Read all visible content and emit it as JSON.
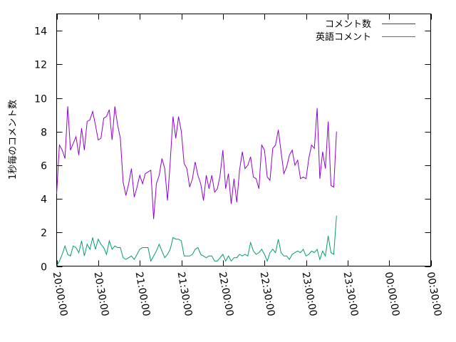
{
  "chart_data": {
    "type": "line",
    "xlabel": "",
    "ylabel": "1秒毎のコメント数",
    "ylim": [
      0,
      15
    ],
    "xlim_minutes": [
      0,
      270
    ],
    "yticks": [
      "0",
      "2",
      "4",
      "6",
      "8",
      "10",
      "12",
      "14"
    ],
    "xticks": [
      "20:00:00",
      "20:30:00",
      "21:00:00",
      "21:30:00",
      "22:00:00",
      "22:30:00",
      "23:00:00",
      "23:30:00",
      "00:00:00",
      "00:30:00"
    ],
    "grid": false,
    "legend_position": "top-right",
    "colors": {
      "series1": "#9400d3",
      "series2": "#009e73"
    },
    "series": [
      {
        "name": "コメント数",
        "points": [
          [
            0,
            4.3
          ],
          [
            2,
            7.2
          ],
          [
            4,
            6.9
          ],
          [
            6,
            6.4
          ],
          [
            8,
            9.5
          ],
          [
            10,
            6.9
          ],
          [
            12,
            7.3
          ],
          [
            14,
            7.7
          ],
          [
            16,
            6.6
          ],
          [
            18,
            8.2
          ],
          [
            20,
            6.9
          ],
          [
            22,
            8.6
          ],
          [
            24,
            8.7
          ],
          [
            26,
            9.2
          ],
          [
            28,
            8.4
          ],
          [
            30,
            7.5
          ],
          [
            32,
            7.6
          ],
          [
            34,
            8.8
          ],
          [
            36,
            8.9
          ],
          [
            38,
            9.3
          ],
          [
            40,
            7.5
          ],
          [
            42,
            9.5
          ],
          [
            44,
            8.4
          ],
          [
            46,
            7.6
          ],
          [
            48,
            5.0
          ],
          [
            50,
            4.2
          ],
          [
            52,
            4.9
          ],
          [
            54,
            5.8
          ],
          [
            56,
            4.1
          ],
          [
            58,
            4.7
          ],
          [
            60,
            5.4
          ],
          [
            62,
            4.9
          ],
          [
            64,
            5.5
          ],
          [
            66,
            5.6
          ],
          [
            68,
            5.7
          ],
          [
            70,
            2.8
          ],
          [
            72,
            4.9
          ],
          [
            74,
            5.4
          ],
          [
            76,
            6.4
          ],
          [
            78,
            5.8
          ],
          [
            80,
            3.9
          ],
          [
            82,
            6.2
          ],
          [
            84,
            8.9
          ],
          [
            86,
            7.6
          ],
          [
            88,
            8.9
          ],
          [
            90,
            8.0
          ],
          [
            92,
            6.1
          ],
          [
            94,
            5.8
          ],
          [
            96,
            4.7
          ],
          [
            98,
            5.2
          ],
          [
            100,
            6.2
          ],
          [
            102,
            5.4
          ],
          [
            104,
            4.9
          ],
          [
            106,
            3.9
          ],
          [
            108,
            5.4
          ],
          [
            110,
            4.6
          ],
          [
            112,
            5.4
          ],
          [
            114,
            4.4
          ],
          [
            116,
            4.6
          ],
          [
            118,
            5.4
          ],
          [
            120,
            6.9
          ],
          [
            122,
            4.6
          ],
          [
            124,
            5.5
          ],
          [
            126,
            3.7
          ],
          [
            128,
            5.2
          ],
          [
            130,
            3.8
          ],
          [
            132,
            5.7
          ],
          [
            134,
            6.8
          ],
          [
            136,
            5.8
          ],
          [
            138,
            6.0
          ],
          [
            140,
            6.5
          ],
          [
            142,
            5.3
          ],
          [
            144,
            5.2
          ],
          [
            146,
            4.6
          ],
          [
            148,
            7.2
          ],
          [
            150,
            6.9
          ],
          [
            152,
            5.3
          ],
          [
            154,
            5.1
          ],
          [
            156,
            7.0
          ],
          [
            158,
            7.2
          ],
          [
            160,
            8.1
          ],
          [
            162,
            6.8
          ],
          [
            164,
            5.5
          ],
          [
            166,
            5.9
          ],
          [
            168,
            6.6
          ],
          [
            170,
            6.9
          ],
          [
            172,
            6.0
          ],
          [
            174,
            6.3
          ],
          [
            176,
            5.2
          ],
          [
            178,
            5.3
          ],
          [
            180,
            5.2
          ],
          [
            182,
            6.4
          ],
          [
            184,
            7.2
          ],
          [
            186,
            7.0
          ],
          [
            188,
            9.4
          ],
          [
            190,
            5.2
          ],
          [
            192,
            6.8
          ],
          [
            194,
            5.8
          ],
          [
            196,
            8.6
          ],
          [
            198,
            4.8
          ],
          [
            200,
            4.7
          ],
          [
            202,
            8.0
          ]
        ]
      },
      {
        "name": "英語コメント",
        "points": [
          [
            0,
            0.0
          ],
          [
            2,
            0.3
          ],
          [
            4,
            0.7
          ],
          [
            6,
            1.2
          ],
          [
            8,
            0.7
          ],
          [
            10,
            0.6
          ],
          [
            12,
            1.2
          ],
          [
            14,
            1.1
          ],
          [
            16,
            0.8
          ],
          [
            18,
            1.5
          ],
          [
            20,
            0.6
          ],
          [
            22,
            1.3
          ],
          [
            24,
            1.0
          ],
          [
            26,
            1.7
          ],
          [
            28,
            1.0
          ],
          [
            30,
            1.6
          ],
          [
            32,
            1.3
          ],
          [
            34,
            1.1
          ],
          [
            36,
            0.7
          ],
          [
            38,
            1.5
          ],
          [
            40,
            1.0
          ],
          [
            42,
            1.2
          ],
          [
            44,
            1.1
          ],
          [
            46,
            1.1
          ],
          [
            48,
            0.5
          ],
          [
            50,
            0.4
          ],
          [
            52,
            0.5
          ],
          [
            54,
            0.6
          ],
          [
            56,
            0.4
          ],
          [
            58,
            0.7
          ],
          [
            60,
            1.0
          ],
          [
            62,
            1.1
          ],
          [
            64,
            1.1
          ],
          [
            66,
            1.1
          ],
          [
            68,
            0.3
          ],
          [
            70,
            0.6
          ],
          [
            72,
            0.9
          ],
          [
            74,
            1.3
          ],
          [
            76,
            0.9
          ],
          [
            78,
            0.5
          ],
          [
            80,
            0.7
          ],
          [
            82,
            1.0
          ],
          [
            84,
            1.7
          ],
          [
            86,
            1.6
          ],
          [
            88,
            1.6
          ],
          [
            90,
            1.5
          ],
          [
            92,
            0.6
          ],
          [
            94,
            0.6
          ],
          [
            96,
            0.6
          ],
          [
            98,
            0.7
          ],
          [
            100,
            1.0
          ],
          [
            102,
            1.1
          ],
          [
            104,
            0.7
          ],
          [
            106,
            0.6
          ],
          [
            108,
            0.5
          ],
          [
            110,
            0.6
          ],
          [
            112,
            0.6
          ],
          [
            114,
            0.3
          ],
          [
            116,
            0.3
          ],
          [
            118,
            0.5
          ],
          [
            120,
            0.7
          ],
          [
            122,
            0.3
          ],
          [
            124,
            0.6
          ],
          [
            126,
            0.3
          ],
          [
            128,
            0.5
          ],
          [
            130,
            0.5
          ],
          [
            132,
            0.7
          ],
          [
            134,
            0.6
          ],
          [
            136,
            0.7
          ],
          [
            138,
            0.6
          ],
          [
            140,
            1.4
          ],
          [
            142,
            0.9
          ],
          [
            144,
            0.7
          ],
          [
            146,
            0.8
          ],
          [
            148,
            1.0
          ],
          [
            150,
            0.7
          ],
          [
            152,
            0.3
          ],
          [
            154,
            0.8
          ],
          [
            156,
            1.0
          ],
          [
            158,
            0.8
          ],
          [
            160,
            1.6
          ],
          [
            162,
            0.8
          ],
          [
            164,
            0.6
          ],
          [
            166,
            0.6
          ],
          [
            168,
            0.4
          ],
          [
            170,
            0.7
          ],
          [
            172,
            0.8
          ],
          [
            174,
            0.9
          ],
          [
            176,
            0.8
          ],
          [
            178,
            1.0
          ],
          [
            180,
            0.6
          ],
          [
            182,
            0.7
          ],
          [
            184,
            0.9
          ],
          [
            186,
            0.8
          ],
          [
            188,
            1.0
          ],
          [
            190,
            0.4
          ],
          [
            192,
            0.9
          ],
          [
            194,
            0.6
          ],
          [
            196,
            1.8
          ],
          [
            198,
            0.8
          ],
          [
            200,
            0.7
          ],
          [
            202,
            3.0
          ]
        ]
      }
    ]
  }
}
